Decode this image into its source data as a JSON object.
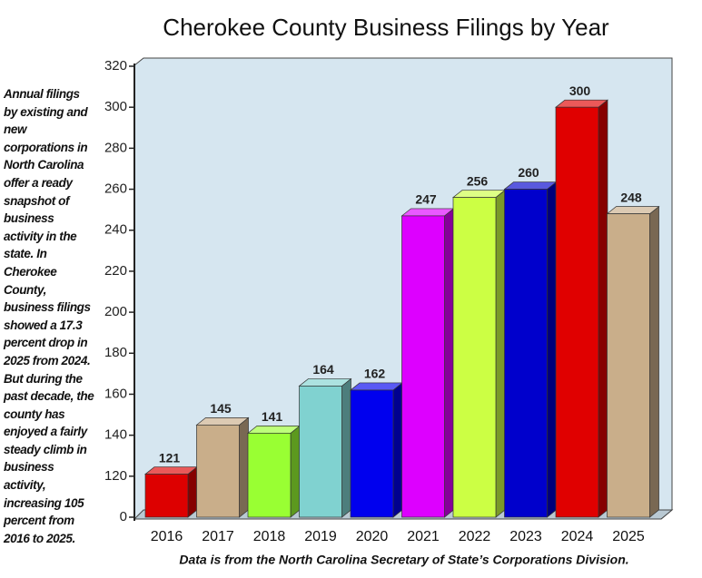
{
  "chart_data": {
    "type": "bar3d",
    "title": "Cherokee County Business Filings by Year",
    "side_note": "Annual filings by existing and new corporations in North Carolina offer a ready snapshot of business activity in the state. In Cherokee County, business filings showed a 17.3 percent drop in 2025 from 2024. But during the past decade, the county has enjoyed a fairly steady climb in business activity, increasing 105 percent from 2016 to 2025.",
    "source": "Data is from the North Carolina Secretary of State’s Corporations Division.",
    "categories": [
      "2016",
      "2017",
      "2018",
      "2019",
      "2020",
      "2021",
      "2022",
      "2023",
      "2024",
      "2025"
    ],
    "values": [
      121,
      145,
      141,
      164,
      162,
      247,
      256,
      260,
      300,
      248
    ],
    "colors": [
      "#dd0000",
      "#c9ae8a",
      "#99ff33",
      "#80d2d0",
      "#0000ee",
      "#dd00ff",
      "#ccff44",
      "#0000cc",
      "#e00000",
      "#c9ae8a"
    ],
    "ylim": [
      0,
      320
    ],
    "yticks": [
      0,
      120,
      140,
      160,
      180,
      200,
      220,
      240,
      260,
      280,
      300,
      320
    ],
    "axis_break": [
      0,
      100
    ]
  }
}
